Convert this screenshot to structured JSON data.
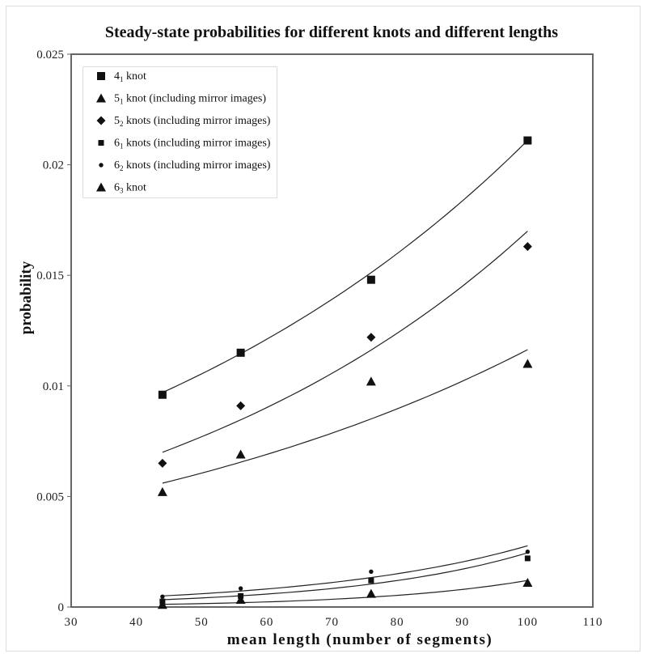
{
  "chart_data": {
    "type": "scatter",
    "title": "Steady-state probabilities for different knots and different lengths",
    "xlabel": "mean length (number of segments)",
    "ylabel": "probability",
    "xlim": [
      30,
      110
    ],
    "ylim": [
      0,
      0.025
    ],
    "xticks": [
      "30",
      "40",
      "50",
      "60",
      "70",
      "80",
      "90",
      "100",
      "110"
    ],
    "yticks": [
      "0",
      "0.005",
      "0.01",
      "0.015",
      "0.02",
      "0.025"
    ],
    "grid": false,
    "legend_placement": "top-left",
    "x": [
      44,
      56,
      76,
      100
    ],
    "series": [
      {
        "name_main": "4",
        "name_sub": "1",
        "name_rest": " knot",
        "marker": "square",
        "values": [
          0.0096,
          0.0115,
          0.0148,
          0.0211
        ],
        "trendline": {
          "type": "exponential",
          "x_range": [
            44,
            100
          ],
          "y_range": [
            0.0097,
            0.0211
          ]
        }
      },
      {
        "name_main": "5",
        "name_sub": "1",
        "name_rest": " knot (including mirror images)",
        "marker": "triangle",
        "values": [
          0.0052,
          0.0069,
          0.0102,
          0.011
        ],
        "trendline": {
          "type": "exponential",
          "x_range": [
            44,
            100
          ],
          "y_range": [
            0.0056,
            0.01164
          ]
        }
      },
      {
        "name_main": "5",
        "name_sub": "2",
        "name_rest": " knots (including mirror images)",
        "marker": "diamond",
        "values": [
          0.0065,
          0.0091,
          0.0122,
          0.0163
        ],
        "trendline": {
          "type": "exponential",
          "x_range": [
            44,
            100
          ],
          "y_range": [
            0.007,
            0.017
          ]
        }
      },
      {
        "name_main": "6",
        "name_sub": "1",
        "name_rest": " knots (including mirror images)",
        "marker": "small-square",
        "values": [
          0.00025,
          0.0005,
          0.0012,
          0.0022
        ],
        "trendline": {
          "type": "exponential",
          "x_range": [
            44,
            100
          ],
          "y_range": [
            0.00033,
            0.00245
          ]
        }
      },
      {
        "name_main": "6",
        "name_sub": "2",
        "name_rest": " knots (including mirror images)",
        "marker": "dot",
        "values": [
          0.00047,
          0.00084,
          0.0016,
          0.0025
        ],
        "trendline": {
          "type": "exponential",
          "x_range": [
            44,
            100
          ],
          "y_range": [
            0.0005,
            0.00277
          ]
        }
      },
      {
        "name_main": "6",
        "name_sub": "3",
        "name_rest": " knot",
        "marker": "triangle",
        "values": [
          0.0001,
          0.00033,
          0.0006,
          0.0011
        ],
        "trendline": {
          "type": "exponential",
          "x_range": [
            44,
            100
          ],
          "y_range": [
            0.00012,
            0.0012
          ]
        }
      }
    ],
    "colors": {
      "marker": "#111111",
      "line": "#222222",
      "frame": "#dddddd"
    }
  }
}
